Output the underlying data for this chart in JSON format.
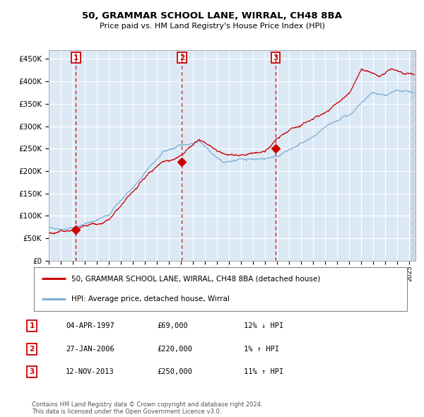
{
  "title": "50, GRAMMAR SCHOOL LANE, WIRRAL, CH48 8BA",
  "subtitle": "Price paid vs. HM Land Registry's House Price Index (HPI)",
  "bg_color": "#dce9f5",
  "grid_color": "#ffffff",
  "red_line_color": "#cc0000",
  "blue_line_color": "#7bafd4",
  "ylim": [
    0,
    470000
  ],
  "yticks": [
    0,
    50000,
    100000,
    150000,
    200000,
    250000,
    300000,
    350000,
    400000,
    450000
  ],
  "ytick_labels": [
    "£0",
    "£50K",
    "£100K",
    "£150K",
    "£200K",
    "£250K",
    "£300K",
    "£350K",
    "£400K",
    "£450K"
  ],
  "sale_dates_num": [
    1997.26,
    2006.07,
    2013.87
  ],
  "sale_prices": [
    69000,
    220000,
    250000
  ],
  "sale_labels": [
    "1",
    "2",
    "3"
  ],
  "legend_red_label": "50, GRAMMAR SCHOOL LANE, WIRRAL, CH48 8BA (detached house)",
  "legend_blue_label": "HPI: Average price, detached house, Wirral",
  "table_rows": [
    [
      "1",
      "04-APR-1997",
      "£69,000",
      "12% ↓ HPI"
    ],
    [
      "2",
      "27-JAN-2006",
      "£220,000",
      "1% ↑ HPI"
    ],
    [
      "3",
      "12-NOV-2013",
      "£250,000",
      "11% ↑ HPI"
    ]
  ],
  "footer": "Contains HM Land Registry data © Crown copyright and database right 2024.\nThis data is licensed under the Open Government Licence v3.0.",
  "xstart": 1995.0,
  "xend": 2025.5
}
